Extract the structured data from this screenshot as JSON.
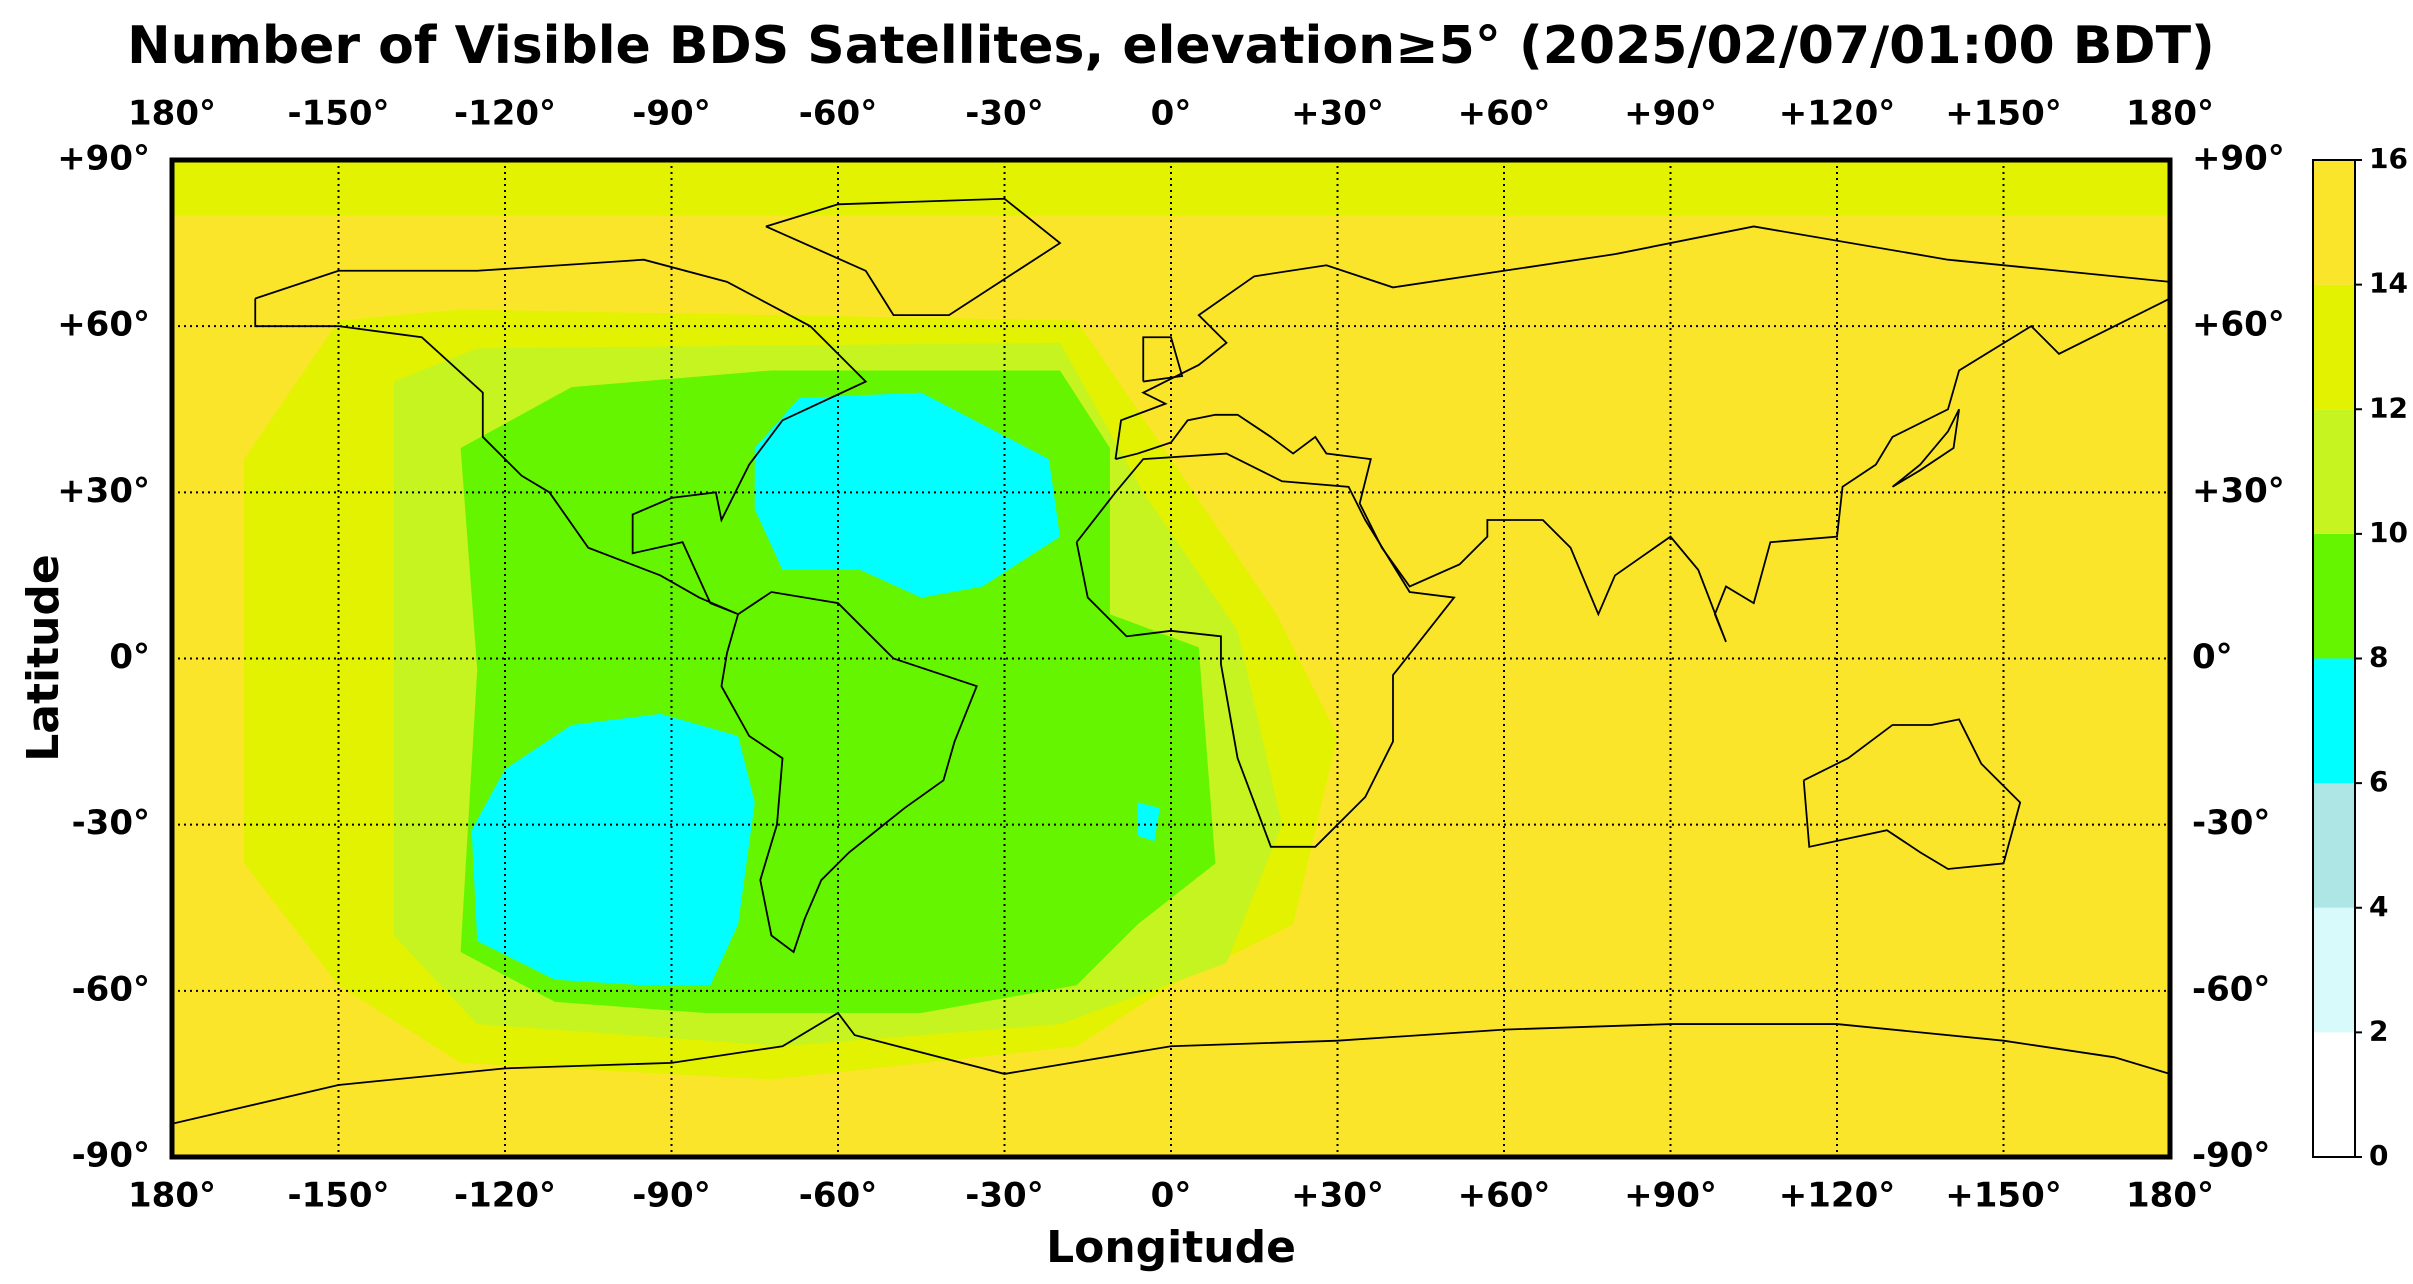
{
  "chart_data": {
    "type": "map",
    "title": "Number of Visible BDS Satellites, elevation≥5° (2025/02/07/01:00 BDT)",
    "x_label": "Longitude",
    "y_label": "Latitude",
    "xlim": [
      -180,
      180
    ],
    "ylim": [
      -90,
      90
    ],
    "xticks": [
      {
        "value": -180,
        "label": "180°"
      },
      {
        "value": -150,
        "label": "-150°"
      },
      {
        "value": -120,
        "label": "-120°"
      },
      {
        "value": -90,
        "label": "-90°"
      },
      {
        "value": -60,
        "label": "-60°"
      },
      {
        "value": -30,
        "label": "-30°"
      },
      {
        "value": 0,
        "label": "0°"
      },
      {
        "value": 30,
        "label": "+30°"
      },
      {
        "value": 60,
        "label": "+60°"
      },
      {
        "value": 90,
        "label": "+90°"
      },
      {
        "value": 120,
        "label": "+120°"
      },
      {
        "value": 150,
        "label": "+150°"
      },
      {
        "value": 180,
        "label": "180°"
      }
    ],
    "yticks": [
      {
        "value": -90,
        "label": "-90°"
      },
      {
        "value": -60,
        "label": "-60°"
      },
      {
        "value": -30,
        "label": "-30°"
      },
      {
        "value": 0,
        "label": "0°"
      },
      {
        "value": 30,
        "label": "+30°"
      },
      {
        "value": 60,
        "label": "+60°"
      },
      {
        "value": 90,
        "label": "+90°"
      }
    ],
    "grid": true,
    "colorbar": {
      "levels": [
        0,
        2,
        4,
        6,
        8,
        10,
        12,
        14,
        16
      ],
      "colors": [
        "#ffffff",
        "#d8fafa",
        "#aee6e6",
        "#00ffff",
        "#66f500",
        "#c6f420",
        "#e2f200",
        "#fae52a"
      ]
    },
    "regions": [
      {
        "value": 15,
        "lonlat": [
          [
            -180,
            90
          ],
          [
            180,
            90
          ],
          [
            180,
            -90
          ],
          [
            -180,
            -90
          ]
        ]
      },
      {
        "value": 13,
        "lonlat": [
          [
            -180,
            90
          ],
          [
            180,
            90
          ],
          [
            180,
            80
          ],
          [
            -180,
            80
          ]
        ]
      },
      {
        "value": 13,
        "lonlat": [
          [
            -150,
            61
          ],
          [
            -128,
            63
          ],
          [
            -17,
            61
          ],
          [
            0,
            36
          ],
          [
            19,
            8
          ],
          [
            30,
            -14
          ],
          [
            22,
            -48
          ],
          [
            0,
            -59
          ],
          [
            -17,
            -70
          ],
          [
            -72,
            -76
          ],
          [
            -128,
            -73
          ],
          [
            -150,
            -59
          ],
          [
            -167,
            -37
          ],
          [
            -167,
            36
          ]
        ]
      },
      {
        "value": 11,
        "lonlat": [
          [
            -140,
            50
          ],
          [
            -125,
            56
          ],
          [
            -20,
            57
          ],
          [
            -5,
            30
          ],
          [
            12,
            5
          ],
          [
            20,
            -30
          ],
          [
            10,
            -55
          ],
          [
            -20,
            -66
          ],
          [
            -70,
            -70
          ],
          [
            -125,
            -66
          ],
          [
            -140,
            -50
          ],
          [
            -140,
            0
          ]
        ]
      },
      {
        "value": 9,
        "lonlat": [
          [
            -128,
            38
          ],
          [
            -108,
            49
          ],
          [
            -72,
            52
          ],
          [
            -20,
            52
          ],
          [
            -11,
            38
          ],
          [
            -11,
            8
          ],
          [
            5,
            2
          ],
          [
            8,
            -37
          ],
          [
            -6,
            -48
          ],
          [
            -17,
            -59
          ],
          [
            -45,
            -64
          ],
          [
            -84,
            -64
          ],
          [
            -111,
            -62
          ],
          [
            -128,
            -53
          ],
          [
            -125,
            -2
          ]
        ]
      },
      {
        "value": 7,
        "lonlat": [
          [
            -75,
            38
          ],
          [
            -67,
            47
          ],
          [
            -45,
            48
          ],
          [
            -22,
            36
          ],
          [
            -20,
            22
          ],
          [
            -34,
            13
          ],
          [
            -45,
            11
          ],
          [
            -56,
            16
          ],
          [
            -70,
            16
          ],
          [
            -75,
            27
          ]
        ]
      },
      {
        "value": 7,
        "lonlat": [
          [
            -120,
            -20
          ],
          [
            -108,
            -12
          ],
          [
            -92,
            -10
          ],
          [
            -78,
            -14
          ],
          [
            -75,
            -26
          ],
          [
            -78,
            -48
          ],
          [
            -83,
            -59
          ],
          [
            -95,
            -59
          ],
          [
            -111,
            -58
          ],
          [
            -125,
            -51
          ],
          [
            -126,
            -31
          ]
        ]
      },
      {
        "value": 7,
        "lonlat": [
          [
            -6,
            -26
          ],
          [
            -2,
            -27
          ],
          [
            -3,
            -33
          ],
          [
            -6,
            -32
          ]
        ]
      }
    ]
  }
}
